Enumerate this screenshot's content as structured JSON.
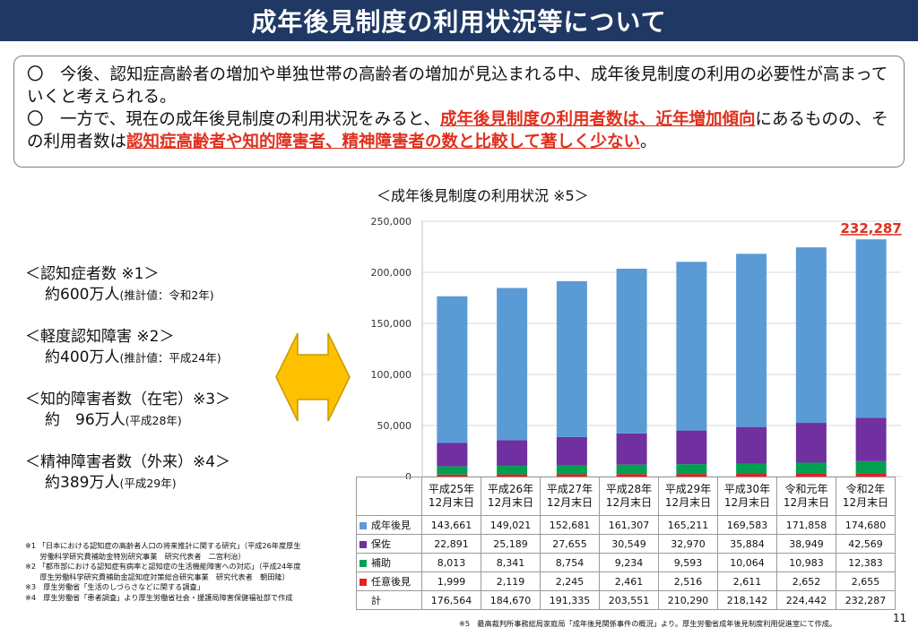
{
  "header": {
    "title": "成年後見制度の利用状況等について"
  },
  "intro": {
    "line1": "〇　今後、認知症高齢者の増加や単独世帯の高齢者の増加が見込まれる中、成年後見制度の利用の必要性が高まっていくと考えられる。",
    "line2_pre": "〇　一方で、現在の成年後見制度の利用状況をみると、",
    "line2_hl1": "成年後見制度の利用者数は、近年増加傾向",
    "line2_mid": "にあるものの、その利用者数は",
    "line2_hl2": "認知症高齢者や知的障害者、精神障害者の数と比較して著しく少ない",
    "line2_end": "。"
  },
  "stats": [
    {
      "head": "＜認知症者数 ※1＞",
      "value": "約600万人",
      "note": "(推計値：令和2年)"
    },
    {
      "head": "＜軽度認知障害 ※2＞",
      "value": "約400万人",
      "note": "(推計値：平成24年)"
    },
    {
      "head": "＜知的障害者数（在宅）※3＞",
      "value": "約　96万人",
      "note": "(平成28年)"
    },
    {
      "head": "＜精神障害者数（外来）※4＞",
      "value": "約389万人",
      "note": "(平成29年)"
    }
  ],
  "chart_data": {
    "type": "bar",
    "stacked": true,
    "title": "＜成年後見制度の利用状況 ※5＞",
    "categories": [
      "平成25年\n12月末日",
      "平成26年\n12月末日",
      "平成27年\n12月末日",
      "平成28年\n12月末日",
      "平成29年\n12月末日",
      "平成30年\n12月末日",
      "令和元年\n12月末日",
      "令和2年\n12月末日"
    ],
    "series": [
      {
        "name": "成年後見",
        "color": "#5b9bd5",
        "values": [
          143661,
          149021,
          152681,
          161307,
          165211,
          169583,
          171858,
          174680
        ]
      },
      {
        "name": "保佐",
        "color": "#7030a0",
        "values": [
          22891,
          25189,
          27655,
          30549,
          32970,
          35884,
          38949,
          42569
        ]
      },
      {
        "name": "補助",
        "color": "#00a050",
        "values": [
          8013,
          8341,
          8754,
          9234,
          9593,
          10064,
          10983,
          12383
        ]
      },
      {
        "name": "任意後見",
        "color": "#e81e1e",
        "values": [
          1999,
          2119,
          2245,
          2461,
          2516,
          2611,
          2652,
          2655
        ]
      }
    ],
    "totals_label": "計",
    "totals": [
      176564,
      184670,
      191335,
      203551,
      210290,
      218142,
      224442,
      232287
    ],
    "highlight_label": "232,287",
    "highlight_color": "#e0301e",
    "yticks": [
      0,
      50000,
      100000,
      150000,
      200000,
      250000
    ],
    "ylim": [
      0,
      250000
    ],
    "grid": true
  },
  "footnotes": [
    "※1 「日本における認知症の高齢者人口の将来推計に関する研究」（平成26年度厚生",
    "　　労働科学研究費補助金特別研究事業　研究代表者　二宮利治）",
    "※2 「都市部における認知症有病率と認知症の生活機能障害への対応」（平成24年度",
    "　　厚生労働科学研究費補助金認知症対策総合研究事業　研究代表者　朝田隆）",
    "※3　厚生労働省「生活のしづらさなどに関する調査」",
    "※4　厚生労働省「患者調査」より厚生労働省社会・援護局障害保健福祉部で作成"
  ],
  "source": "※5　最高裁判所事務総局家庭局「成年後見関係事件の概況」より。厚生労働省成年後見制度利用促進室にて作成。",
  "page_number": "11"
}
